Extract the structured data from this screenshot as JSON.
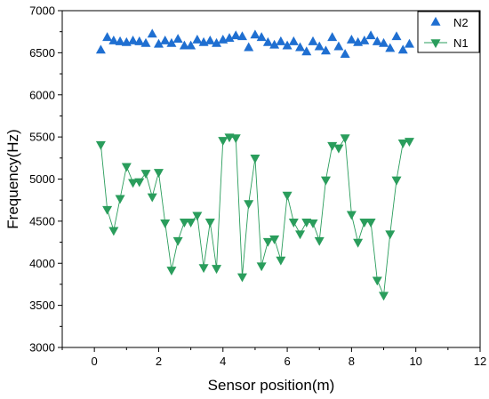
{
  "chart_data": {
    "type": "scatter",
    "xlabel": "Sensor position(m)",
    "ylabel": "Frequency(Hz)",
    "xlim": [
      -1,
      12
    ],
    "ylim": [
      3000,
      7000
    ],
    "xticks": [
      0,
      2,
      4,
      6,
      8,
      10,
      12
    ],
    "yticks": [
      3000,
      3500,
      4000,
      4500,
      5000,
      5500,
      6000,
      6500,
      7000
    ],
    "legend_position": "top-right",
    "grid": false,
    "x": [
      0.2,
      0.4,
      0.6,
      0.8,
      1.0,
      1.2,
      1.4,
      1.6,
      1.8,
      2.0,
      2.2,
      2.4,
      2.6,
      2.8,
      3.0,
      3.2,
      3.4,
      3.6,
      3.8,
      4.0,
      4.2,
      4.4,
      4.6,
      4.8,
      5.0,
      5.2,
      5.4,
      5.6,
      5.8,
      6.0,
      6.2,
      6.4,
      6.6,
      6.8,
      7.0,
      7.2,
      7.4,
      7.6,
      7.8,
      8.0,
      8.2,
      8.4,
      8.6,
      8.8,
      9.0,
      9.2,
      9.4,
      9.6,
      9.8
    ],
    "series": [
      {
        "name": "N2",
        "color": "#1f6fd1",
        "marker": "triangle-up",
        "line": false,
        "values": [
          6530,
          6680,
          6640,
          6630,
          6620,
          6640,
          6630,
          6610,
          6720,
          6600,
          6640,
          6610,
          6660,
          6580,
          6580,
          6650,
          6620,
          6640,
          6610,
          6650,
          6670,
          6700,
          6690,
          6560,
          6710,
          6680,
          6620,
          6590,
          6630,
          6580,
          6630,
          6560,
          6510,
          6630,
          6570,
          6520,
          6680,
          6570,
          6480,
          6650,
          6620,
          6640,
          6700,
          6630,
          6610,
          6550,
          6690,
          6530,
          6600
        ]
      },
      {
        "name": "N1",
        "color": "#2a9d5c",
        "marker": "triangle-down",
        "line": true,
        "values": [
          5410,
          4640,
          4390,
          4770,
          5150,
          4960,
          4970,
          5070,
          4790,
          5080,
          4480,
          3920,
          4270,
          4490,
          4490,
          4570,
          3950,
          4490,
          3940,
          5460,
          5500,
          5490,
          3840,
          4710,
          5250,
          3970,
          4260,
          4290,
          4040,
          4810,
          4490,
          4350,
          4490,
          4480,
          4270,
          4990,
          5400,
          5370,
          5490,
          4580,
          4250,
          4490,
          4490,
          3800,
          3620,
          4350,
          4990,
          5430,
          5450
        ]
      }
    ]
  }
}
